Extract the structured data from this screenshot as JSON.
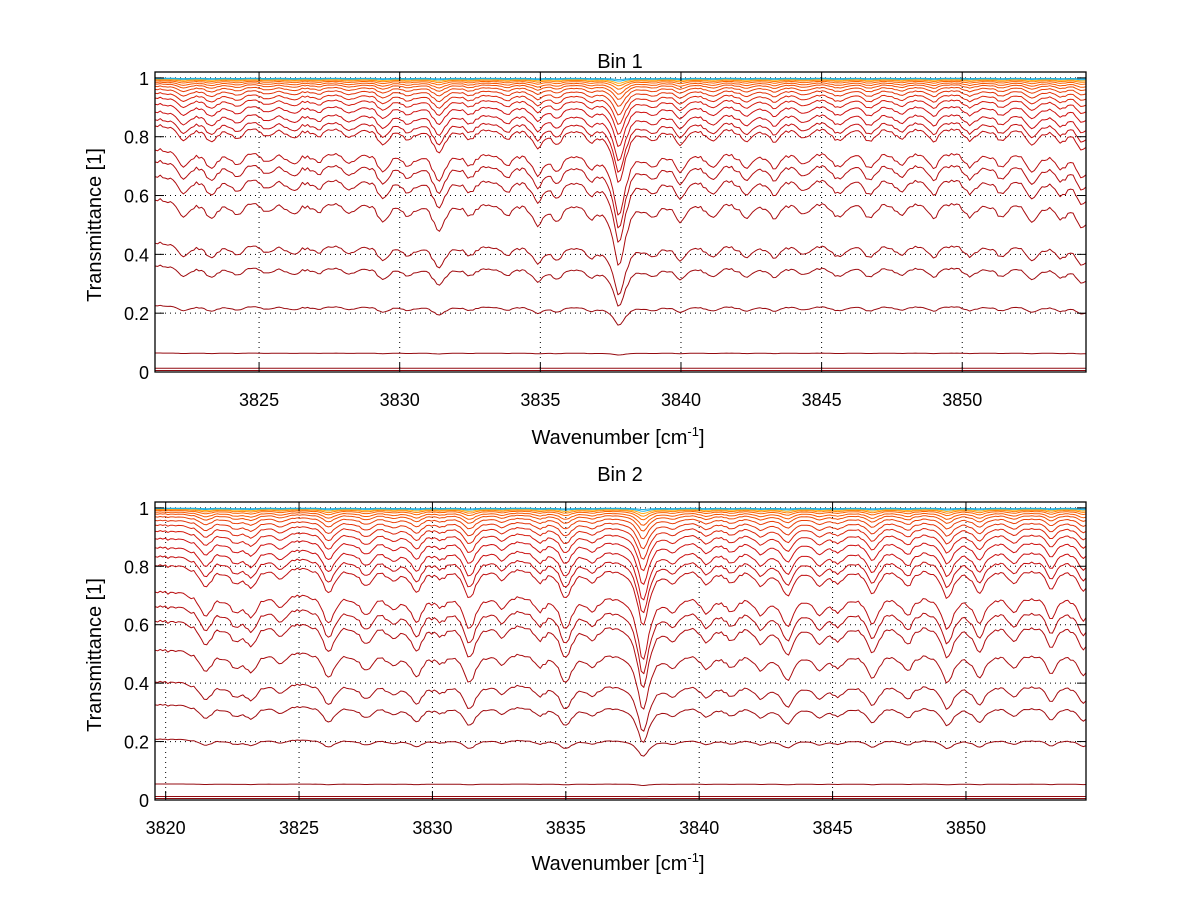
{
  "chart_data": [
    {
      "type": "line",
      "title": "Bin 1",
      "xlabel": "Wavenumber [cm^-1]",
      "xlabel_text": "Wavenumber [cm",
      "xlabel_sup": "-1",
      "xlabel_close": "]",
      "ylabel": "Transmittance [1]",
      "xlim": [
        3821.3,
        3854.4
      ],
      "ylim": [
        0,
        1.02
      ],
      "xticks": [
        3825,
        3830,
        3835,
        3840,
        3845,
        3850
      ],
      "xtick_labels": [
        "3825",
        "3830",
        "3835",
        "3840",
        "3845",
        "3850"
      ],
      "yticks": [
        0,
        0.2,
        0.4,
        0.6,
        0.8,
        1
      ],
      "ytick_labels": [
        "0",
        "0.2",
        "0.4",
        "0.6",
        "0.8",
        "1"
      ],
      "grid": true,
      "series_description": "Family of transmittance spectra, one per layer; opaque layers near 0, transparent layers near 1 (color shifts dark red to orange/yellow/cyan toward 1).",
      "absorption_lines": [
        {
          "x": 3822.3,
          "depth": 0.12
        },
        {
          "x": 3823.3,
          "depth": 0.12
        },
        {
          "x": 3824.2,
          "depth": 0.1
        },
        {
          "x": 3825.3,
          "depth": 0.08
        },
        {
          "x": 3826.2,
          "depth": 0.1
        },
        {
          "x": 3827.1,
          "depth": 0.08
        },
        {
          "x": 3828.2,
          "depth": 0.1
        },
        {
          "x": 3829.4,
          "depth": 0.14
        },
        {
          "x": 3830.3,
          "depth": 0.1
        },
        {
          "x": 3831.4,
          "depth": 0.22
        },
        {
          "x": 3832.5,
          "depth": 0.1
        },
        {
          "x": 3833.8,
          "depth": 0.1
        },
        {
          "x": 3834.9,
          "depth": 0.16
        },
        {
          "x": 3835.6,
          "depth": 0.12
        },
        {
          "x": 3836.8,
          "depth": 0.1
        },
        {
          "x": 3837.8,
          "depth": 0.45
        },
        {
          "x": 3839.0,
          "depth": 0.1
        },
        {
          "x": 3840.0,
          "depth": 0.14
        },
        {
          "x": 3841.1,
          "depth": 0.12
        },
        {
          "x": 3842.3,
          "depth": 0.12
        },
        {
          "x": 3843.3,
          "depth": 0.12
        },
        {
          "x": 3844.4,
          "depth": 0.1
        },
        {
          "x": 3845.6,
          "depth": 0.12
        },
        {
          "x": 3846.7,
          "depth": 0.12
        },
        {
          "x": 3847.8,
          "depth": 0.1
        },
        {
          "x": 3849.0,
          "depth": 0.12
        },
        {
          "x": 3850.3,
          "depth": 0.12
        },
        {
          "x": 3851.4,
          "depth": 0.12
        },
        {
          "x": 3852.5,
          "depth": 0.14
        },
        {
          "x": 3853.5,
          "depth": 0.12
        },
        {
          "x": 3854.3,
          "depth": 0.2
        }
      ],
      "curves": [
        {
          "baseline": 0.005,
          "scale": 0.0
        },
        {
          "baseline": 0.013,
          "scale": 0.05
        },
        {
          "baseline": 0.065,
          "scale": 0.25
        },
        {
          "baseline": 0.23,
          "scale": 0.7
        },
        {
          "baseline": 0.37,
          "scale": 0.9
        },
        {
          "baseline": 0.45,
          "scale": 0.95
        },
        {
          "baseline": 0.6,
          "scale": 0.9
        },
        {
          "baseline": 0.68,
          "scale": 0.8
        },
        {
          "baseline": 0.73,
          "scale": 0.75
        },
        {
          "baseline": 0.77,
          "scale": 0.7
        },
        {
          "baseline": 0.85,
          "scale": 0.55
        },
        {
          "baseline": 0.87,
          "scale": 0.5
        },
        {
          "baseline": 0.895,
          "scale": 0.45
        },
        {
          "baseline": 0.92,
          "scale": 0.38
        },
        {
          "baseline": 0.94,
          "scale": 0.32
        },
        {
          "baseline": 0.955,
          "scale": 0.27
        },
        {
          "baseline": 0.967,
          "scale": 0.22
        },
        {
          "baseline": 0.976,
          "scale": 0.17
        },
        {
          "baseline": 0.983,
          "scale": 0.13
        },
        {
          "baseline": 0.988,
          "scale": 0.1
        },
        {
          "baseline": 0.992,
          "scale": 0.07
        },
        {
          "baseline": 0.995,
          "scale": 0.05
        },
        {
          "baseline": 0.997,
          "scale": 0.035
        },
        {
          "baseline": 0.998,
          "scale": 0.02
        },
        {
          "baseline": 0.999,
          "scale": 0.01
        }
      ]
    },
    {
      "type": "line",
      "title": "Bin 2",
      "xlabel": "Wavenumber [cm^-1]",
      "xlabel_text": "Wavenumber [cm",
      "xlabel_sup": "-1",
      "xlabel_close": "]",
      "ylabel": "Transmittance [1]",
      "xlim": [
        3819.6,
        3854.5
      ],
      "ylim": [
        0,
        1.02
      ],
      "xticks": [
        3820,
        3825,
        3830,
        3835,
        3840,
        3845,
        3850
      ],
      "xtick_labels": [
        "3820",
        "3825",
        "3830",
        "3835",
        "3840",
        "3845",
        "3850"
      ],
      "yticks": [
        0,
        0.2,
        0.4,
        0.6,
        0.8,
        1
      ],
      "ytick_labels": [
        "0",
        "0.2",
        "0.4",
        "0.6",
        "0.8",
        "1"
      ],
      "grid": true,
      "series_description": "Family of transmittance spectra, one per layer; opaque layers near 0, transparent layers near 1 (color shifts dark red to orange/yellow/cyan toward 1).",
      "absorption_lines": [
        {
          "x": 3821.5,
          "depth": 0.18
        },
        {
          "x": 3822.6,
          "depth": 0.12
        },
        {
          "x": 3823.2,
          "depth": 0.16
        },
        {
          "x": 3824.3,
          "depth": 0.1
        },
        {
          "x": 3826.1,
          "depth": 0.22
        },
        {
          "x": 3827.5,
          "depth": 0.16
        },
        {
          "x": 3828.5,
          "depth": 0.1
        },
        {
          "x": 3829.4,
          "depth": 0.2
        },
        {
          "x": 3830.3,
          "depth": 0.08
        },
        {
          "x": 3831.4,
          "depth": 0.26
        },
        {
          "x": 3832.6,
          "depth": 0.1
        },
        {
          "x": 3834.0,
          "depth": 0.12
        },
        {
          "x": 3835.0,
          "depth": 0.26
        },
        {
          "x": 3836.0,
          "depth": 0.12
        },
        {
          "x": 3837.9,
          "depth": 0.5
        },
        {
          "x": 3839.0,
          "depth": 0.12
        },
        {
          "x": 3840.3,
          "depth": 0.14
        },
        {
          "x": 3841.2,
          "depth": 0.12
        },
        {
          "x": 3842.3,
          "depth": 0.14
        },
        {
          "x": 3843.3,
          "depth": 0.24
        },
        {
          "x": 3844.5,
          "depth": 0.14
        },
        {
          "x": 3845.2,
          "depth": 0.12
        },
        {
          "x": 3846.5,
          "depth": 0.22
        },
        {
          "x": 3847.8,
          "depth": 0.16
        },
        {
          "x": 3849.3,
          "depth": 0.26
        },
        {
          "x": 3850.5,
          "depth": 0.22
        },
        {
          "x": 3851.8,
          "depth": 0.14
        },
        {
          "x": 3853.2,
          "depth": 0.18
        },
        {
          "x": 3854.4,
          "depth": 0.2
        }
      ],
      "curves": [
        {
          "baseline": 0.005,
          "scale": 0.0
        },
        {
          "baseline": 0.012,
          "scale": 0.04
        },
        {
          "baseline": 0.055,
          "scale": 0.2
        },
        {
          "baseline": 0.21,
          "scale": 0.6
        },
        {
          "baseline": 0.33,
          "scale": 0.85
        },
        {
          "baseline": 0.41,
          "scale": 0.9
        },
        {
          "baseline": 0.52,
          "scale": 0.85
        },
        {
          "baseline": 0.62,
          "scale": 0.8
        },
        {
          "baseline": 0.67,
          "scale": 0.75
        },
        {
          "baseline": 0.72,
          "scale": 0.7
        },
        {
          "baseline": 0.81,
          "scale": 0.55
        },
        {
          "baseline": 0.84,
          "scale": 0.5
        },
        {
          "baseline": 0.87,
          "scale": 0.45
        },
        {
          "baseline": 0.9,
          "scale": 0.38
        },
        {
          "baseline": 0.925,
          "scale": 0.32
        },
        {
          "baseline": 0.945,
          "scale": 0.27
        },
        {
          "baseline": 0.96,
          "scale": 0.22
        },
        {
          "baseline": 0.972,
          "scale": 0.17
        },
        {
          "baseline": 0.981,
          "scale": 0.13
        },
        {
          "baseline": 0.987,
          "scale": 0.1
        },
        {
          "baseline": 0.992,
          "scale": 0.07
        },
        {
          "baseline": 0.995,
          "scale": 0.05
        },
        {
          "baseline": 0.997,
          "scale": 0.035
        },
        {
          "baseline": 0.998,
          "scale": 0.02
        },
        {
          "baseline": 0.999,
          "scale": 0.01
        }
      ]
    }
  ],
  "colors": {
    "dark_red": "#8b0a10",
    "red": "#d01010",
    "orange": "#ff6a00",
    "yellow": "#ffd020",
    "cyan": "#20b0e0"
  }
}
